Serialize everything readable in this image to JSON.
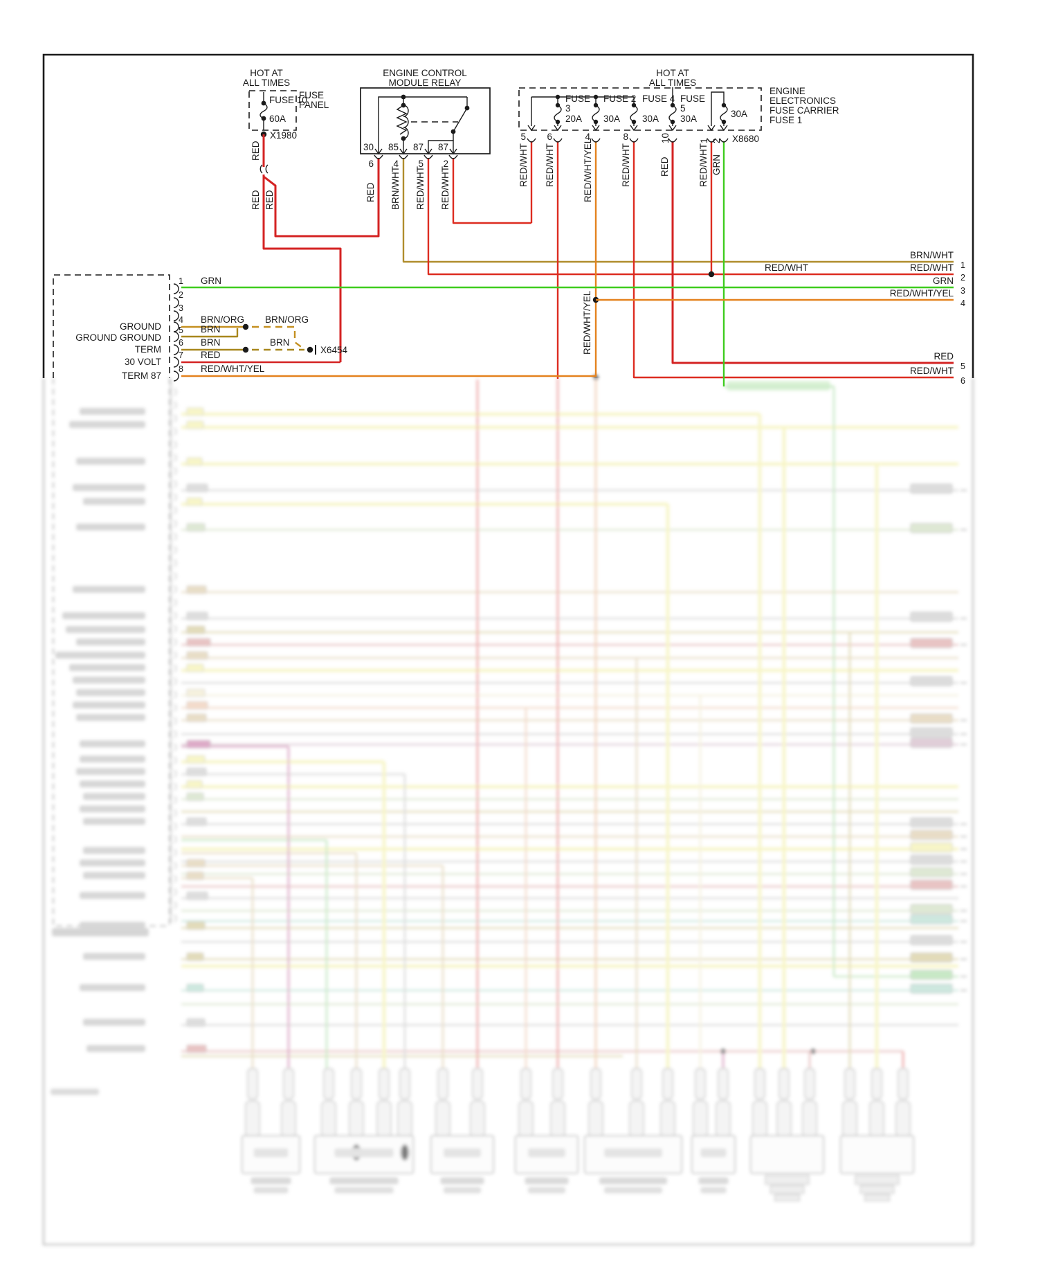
{
  "colors": {
    "ink": "#1a1a1a",
    "red": "#d42323",
    "redwht": "#dd2c20",
    "green": "#3ecc1e",
    "brnwht": "#b08d2d",
    "brn": "#a8871c",
    "brnorg": "#c49020",
    "redwhtyel": "#e4821e"
  },
  "fuse_panel": {
    "hot_at": "HOT AT",
    "all_times": "ALL TIMES",
    "box_label_line1": "FUSE",
    "box_label_line2": "PANEL",
    "fuse_name": "FUSE 10",
    "amp_rating": "60A",
    "connector_id": "X1980",
    "wire_label_1": "RED",
    "wire_label_2": "RED",
    "wire_label_3": "RED"
  },
  "relay": {
    "title_line1": "ENGINE CONTROL",
    "title_line2": "MODULE RELAY",
    "internal_pins": [
      "30",
      "85",
      "87",
      "87"
    ],
    "external_pins": [
      "6",
      "4",
      "5",
      "2"
    ],
    "wire_labels": [
      "RED",
      "BRN/WHT",
      "RED/WHT",
      "RED/WHT"
    ]
  },
  "fuse_carrier": {
    "hot_at": "HOT AT",
    "all_times": "ALL TIMES",
    "fuses": [
      {
        "line1": "FUSE",
        "line2": "3",
        "amp": "20A"
      },
      {
        "line1": "FUSE 2",
        "amp": "30A"
      },
      {
        "line1": "FUSE 4",
        "amp": "30A"
      },
      {
        "line1": "FUSE",
        "line2": "5",
        "amp": "30A"
      },
      {
        "amp": "30A"
      }
    ],
    "side_label_line1": "ENGINE",
    "side_label_line2": "ELECTRONICS",
    "side_label_line3": "FUSE CARRIER",
    "side_label_line4": "FUSE 1",
    "connector_id": "X8680",
    "external_pins": [
      "5",
      "6",
      "4",
      "8",
      "10",
      "1",
      "2"
    ],
    "wire_labels": [
      "RED/WHT",
      "RED/WHT",
      "RED/WHT/YEL",
      "RED/WHT",
      "RED",
      "RED/WHT",
      "GRN"
    ],
    "branch_label": "RED/WHT/YEL"
  },
  "ecm_connector": {
    "pins": [
      {
        "num": "1",
        "wire": "GRN"
      },
      {
        "num": "2"
      },
      {
        "num": "3"
      },
      {
        "num": "4",
        "name": "GROUND",
        "wire": "BRN/ORG",
        "wire2": "BRN/ORG"
      },
      {
        "num": "5",
        "name": "GROUND GROUND",
        "wire": "BRN"
      },
      {
        "num": "6",
        "name": "TERM",
        "wire": "BRN",
        "wire2": "BRN"
      },
      {
        "num": "7",
        "name": "30 VOLT",
        "wire": "RED"
      },
      {
        "num": "8",
        "name": "TERM 87",
        "wire": "RED/WHT/YEL"
      }
    ],
    "splice_id": "X6454"
  },
  "right_edge": {
    "rows": [
      {
        "label": "BRN/WHT",
        "pin": "1"
      },
      {
        "label": "RED/WHT",
        "pin": "2",
        "mid_label": "RED/WHT"
      },
      {
        "label": "GRN",
        "pin": "3"
      },
      {
        "label": "RED/WHT/YEL",
        "pin": "4"
      },
      {
        "label": "RED",
        "pin": "5"
      },
      {
        "label": "RED/WHT",
        "pin": "6"
      }
    ]
  }
}
